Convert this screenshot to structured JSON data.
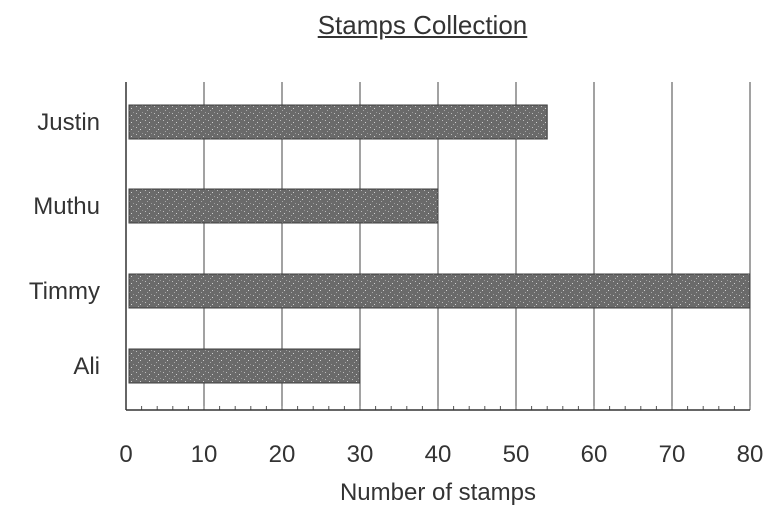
{
  "chart_data": {
    "type": "bar",
    "orientation": "horizontal",
    "title": "Stamps Collection",
    "xlabel": "Number of stamps",
    "ylabel": "",
    "categories": [
      "Justin",
      "Muthu",
      "Timmy",
      "Ali"
    ],
    "values": [
      54,
      40,
      80,
      30
    ],
    "xlim": [
      0,
      80
    ],
    "xticks": [
      "0",
      "10",
      "20",
      "30",
      "40",
      "50",
      "60",
      "70",
      "80"
    ],
    "grid": "vertical",
    "bar_color": "#6e6e6e",
    "legend": "none"
  }
}
